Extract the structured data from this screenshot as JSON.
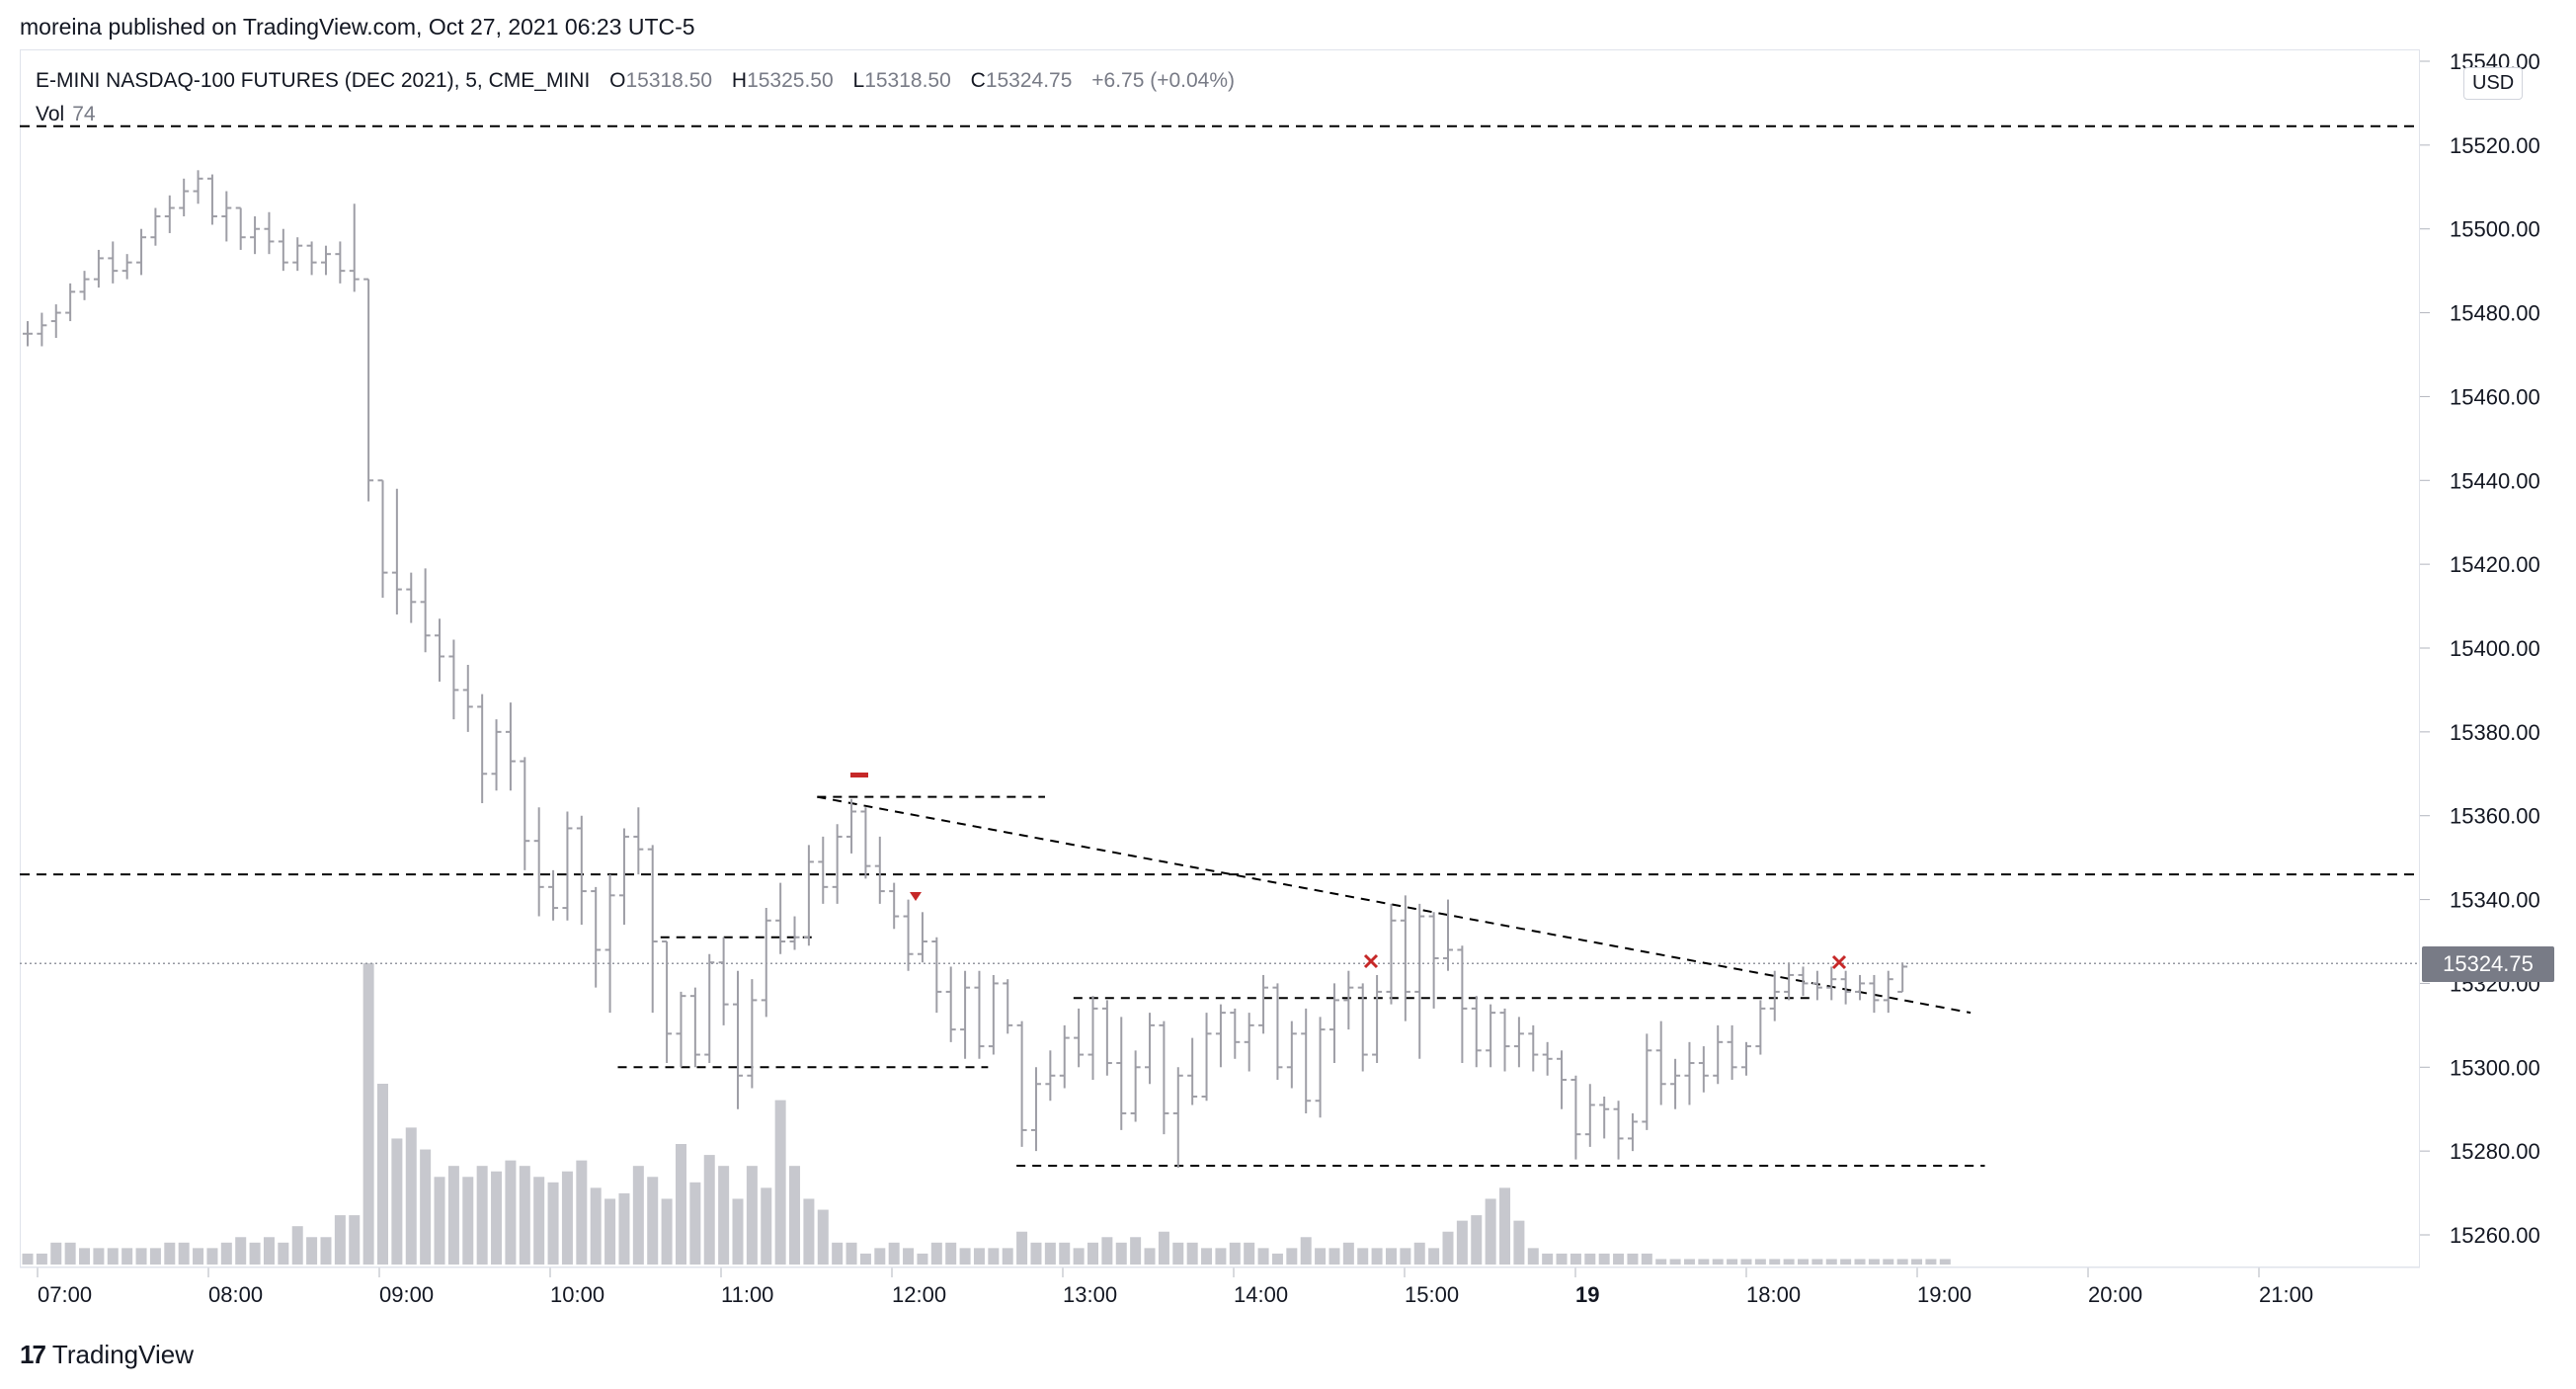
{
  "header": {
    "publish_line": "moreina published on TradingView.com, Oct 27, 2021 06:23 UTC-5"
  },
  "legend": {
    "symbol": "E-MINI NASDAQ-100 FUTURES (DEC 2021), 5, CME_MINI",
    "open_label": "O",
    "open_value": "15318.50",
    "high_label": "H",
    "high_value": "15325.50",
    "low_label": "L",
    "low_value": "15318.50",
    "close_label": "C",
    "close_value": "15324.75",
    "change": "+6.75 (+0.04%)",
    "vol_label": "Vol",
    "vol_value": "74"
  },
  "axis": {
    "currency": "USD",
    "last_price": "15324.75",
    "price_ticks": [
      "15540.00",
      "15520.00",
      "15500.00",
      "15480.00",
      "15460.00",
      "15440.00",
      "15420.00",
      "15400.00",
      "15380.00",
      "15360.00",
      "15340.00",
      "15320.00",
      "15300.00",
      "15280.00",
      "15260.00"
    ],
    "time_ticks": [
      "07:00",
      "08:00",
      "09:00",
      "10:00",
      "11:00",
      "12:00",
      "13:00",
      "14:00",
      "15:00",
      "19",
      "18:00",
      "19:00",
      "20:00",
      "21:00"
    ]
  },
  "footer": {
    "brand": "TradingView"
  },
  "colors": {
    "bar": "#9e9ea6",
    "volume": "#c7c8ce",
    "line": "#000000",
    "marker": "#c62828",
    "price_line": "#9598a1"
  },
  "chart_data": {
    "type": "bar",
    "title": "E-MINI NASDAQ-100 FUTURES (DEC 2021), 5, CME_MINI",
    "ylim": [
      15255,
      15545
    ],
    "ohlc": [
      [
        15475,
        15478,
        15472,
        15475
      ],
      [
        15475,
        15480,
        15472,
        15477
      ],
      [
        15478,
        15482,
        15474,
        15480
      ],
      [
        15480,
        15487,
        15478,
        15485
      ],
      [
        15485,
        15490,
        15483,
        15488
      ],
      [
        15488,
        15495,
        15486,
        15493
      ],
      [
        15493,
        15497,
        15487,
        15490
      ],
      [
        15490,
        15494,
        15488,
        15492
      ],
      [
        15492,
        15500,
        15489,
        15498
      ],
      [
        15498,
        15505,
        15496,
        15503
      ],
      [
        15503,
        15508,
        15499,
        15505
      ],
      [
        15505,
        15512,
        15503,
        15509
      ],
      [
        15509,
        15514,
        15506,
        15512
      ],
      [
        15512,
        15513,
        15501,
        15503
      ],
      [
        15503,
        15509,
        15497,
        15505
      ],
      [
        15505,
        15505,
        15495,
        15498
      ],
      [
        15498,
        15503,
        15494,
        15500
      ],
      [
        15500,
        15504,
        15494,
        15497
      ],
      [
        15497,
        15500,
        15490,
        15492
      ],
      [
        15492,
        15498,
        15490,
        15496
      ],
      [
        15496,
        15497,
        15489,
        15492
      ],
      [
        15492,
        15496,
        15489,
        15494
      ],
      [
        15494,
        15497,
        15487,
        15490
      ],
      [
        15490,
        15506,
        15485,
        15488
      ],
      [
        15488,
        15488,
        15435,
        15440
      ],
      [
        15440,
        15440,
        15412,
        15418
      ],
      [
        15418,
        15438,
        15408,
        15414
      ],
      [
        15414,
        15418,
        15406,
        15411
      ],
      [
        15411,
        15419,
        15399,
        15403
      ],
      [
        15403,
        15407,
        15392,
        15398
      ],
      [
        15398,
        15402,
        15383,
        15390
      ],
      [
        15390,
        15396,
        15380,
        15386
      ],
      [
        15386,
        15389,
        15363,
        15370
      ],
      [
        15370,
        15383,
        15366,
        15380
      ],
      [
        15380,
        15387,
        15366,
        15373
      ],
      [
        15373,
        15374,
        15347,
        15354
      ],
      [
        15354,
        15362,
        15336,
        15343
      ],
      [
        15343,
        15347,
        15335,
        15338
      ],
      [
        15338,
        15361,
        15335,
        15357
      ],
      [
        15357,
        15360,
        15334,
        15342
      ],
      [
        15342,
        15343,
        15319,
        15328
      ],
      [
        15328,
        15346,
        15313,
        15341
      ],
      [
        15341,
        15357,
        15334,
        15355
      ],
      [
        15355,
        15362,
        15346,
        15352
      ],
      [
        15352,
        15353,
        15313,
        15330
      ],
      [
        15330,
        15330,
        15301,
        15308
      ],
      [
        15308,
        15318,
        15300,
        15317
      ],
      [
        15317,
        15319,
        15300,
        15303
      ],
      [
        15303,
        15327,
        15301,
        15325
      ],
      [
        15325,
        15331,
        15310,
        15315
      ],
      [
        15315,
        15323,
        15290,
        15298
      ],
      [
        15298,
        15321,
        15295,
        15316
      ],
      [
        15316,
        15338,
        15312,
        15335
      ],
      [
        15335,
        15344,
        15327,
        15330
      ],
      [
        15330,
        15336,
        15328,
        15331
      ],
      [
        15331,
        15353,
        15329,
        15349
      ],
      [
        15349,
        15355,
        15339,
        15343
      ],
      [
        15343,
        15358,
        15339,
        15355
      ],
      [
        15355,
        15364,
        15351,
        15361
      ],
      [
        15361,
        15362,
        15345,
        15348
      ],
      [
        15348,
        15355,
        15339,
        15342
      ],
      [
        15342,
        15344,
        15333,
        15336
      ],
      [
        15336,
        15340,
        15323,
        15327
      ],
      [
        15327,
        15337,
        15325,
        15330
      ],
      [
        15330,
        15331,
        15313,
        15318
      ],
      [
        15318,
        15324,
        15306,
        15309
      ],
      [
        15309,
        15323,
        15302,
        15319
      ],
      [
        15319,
        15323,
        15302,
        15305
      ],
      [
        15305,
        15322,
        15303,
        15320
      ],
      [
        15320,
        15321,
        15308,
        15310
      ],
      [
        15310,
        15311,
        15281,
        15285
      ],
      [
        15285,
        15300,
        15280,
        15296
      ],
      [
        15296,
        15304,
        15292,
        15298
      ],
      [
        15298,
        15310,
        15295,
        15307
      ],
      [
        15307,
        15314,
        15300,
        15303
      ],
      [
        15303,
        15317,
        15297,
        15314
      ],
      [
        15314,
        15316,
        15298,
        15301
      ],
      [
        15301,
        15312,
        15285,
        15289
      ],
      [
        15289,
        15304,
        15287,
        15300
      ],
      [
        15300,
        15313,
        15296,
        15310
      ],
      [
        15310,
        15311,
        15284,
        15289
      ],
      [
        15289,
        15300,
        15276,
        15298
      ],
      [
        15298,
        15307,
        15291,
        15293
      ],
      [
        15293,
        15313,
        15292,
        15308
      ],
      [
        15308,
        15315,
        15300,
        15313
      ],
      [
        15313,
        15314,
        15302,
        15306
      ],
      [
        15306,
        15313,
        15299,
        15310
      ],
      [
        15310,
        15322,
        15308,
        15319
      ],
      [
        15319,
        15320,
        15297,
        15300
      ],
      [
        15300,
        15311,
        15295,
        15308
      ],
      [
        15308,
        15314,
        15289,
        15292
      ],
      [
        15292,
        15312,
        15288,
        15309
      ],
      [
        15309,
        15320,
        15301,
        15316
      ],
      [
        15316,
        15323,
        15309,
        15319
      ],
      [
        15319,
        15320,
        15299,
        15303
      ],
      [
        15303,
        15322,
        15301,
        15318
      ],
      [
        15318,
        15339,
        15315,
        15335
      ],
      [
        15335,
        15341,
        15311,
        15318
      ],
      [
        15318,
        15339,
        15302,
        15336
      ],
      [
        15336,
        15337,
        15314,
        15326
      ],
      [
        15326,
        15340,
        15323,
        15328
      ],
      [
        15328,
        15329,
        15301,
        15314
      ],
      [
        15314,
        15317,
        15300,
        15304
      ],
      [
        15304,
        15315,
        15300,
        15313
      ],
      [
        15313,
        15314,
        15299,
        15305
      ],
      [
        15305,
        15312,
        15300,
        15308
      ],
      [
        15308,
        15310,
        15299,
        15303
      ],
      [
        15303,
        15306,
        15298,
        15302
      ],
      [
        15302,
        15304,
        15290,
        15297
      ],
      [
        15297,
        15298,
        15278,
        15284
      ],
      [
        15284,
        15296,
        15281,
        15291
      ],
      [
        15291,
        15293,
        15283,
        15290
      ],
      [
        15290,
        15292,
        15278,
        15283
      ],
      [
        15283,
        15289,
        15280,
        15287
      ],
      [
        15287,
        15308,
        15285,
        15304
      ],
      [
        15304,
        15311,
        15291,
        15296
      ],
      [
        15296,
        15302,
        15290,
        15298
      ],
      [
        15298,
        15306,
        15291,
        15301
      ],
      [
        15301,
        15305,
        15294,
        15298
      ],
      [
        15298,
        15310,
        15296,
        15306
      ],
      [
        15306,
        15310,
        15297,
        15300
      ],
      [
        15300,
        15306,
        15298,
        15305
      ],
      [
        15305,
        15316,
        15303,
        15314
      ],
      [
        15314,
        15323,
        15311,
        15318
      ],
      [
        15318,
        15325,
        15316,
        15322
      ],
      [
        15322,
        15324,
        15317,
        15320
      ],
      [
        15320,
        15323,
        15316,
        15319
      ],
      [
        15319,
        15324,
        15316,
        15321
      ],
      [
        15321,
        15323,
        15315,
        15318
      ],
      [
        15318,
        15322,
        15316,
        15320
      ],
      [
        15320,
        15322,
        15313,
        15316
      ],
      [
        15316,
        15323,
        15313,
        15321
      ],
      [
        15318,
        15325,
        15318,
        15324
      ]
    ],
    "volume": [
      2,
      2,
      4,
      4,
      3,
      3,
      3,
      3,
      3,
      3,
      4,
      4,
      3,
      3,
      4,
      5,
      4,
      5,
      4,
      7,
      5,
      5,
      9,
      9,
      55,
      33,
      23,
      25,
      21,
      16,
      18,
      16,
      18,
      17,
      19,
      18,
      16,
      15,
      17,
      19,
      14,
      12,
      13,
      18,
      16,
      12,
      22,
      15,
      20,
      18,
      12,
      18,
      14,
      30,
      18,
      12,
      10,
      4,
      4,
      2,
      3,
      4,
      3,
      2,
      4,
      4,
      3,
      3,
      3,
      3,
      6,
      4,
      4,
      4,
      3,
      4,
      5,
      4,
      5,
      3,
      6,
      4,
      4,
      3,
      3,
      4,
      4,
      3,
      2,
      3,
      5,
      3,
      3,
      4,
      3,
      3,
      3,
      3,
      4,
      3,
      6,
      8,
      9,
      12,
      14,
      8,
      3,
      2,
      2,
      2,
      2,
      2,
      2,
      2,
      2,
      1,
      1,
      1,
      1,
      1,
      1,
      1,
      1,
      1,
      1,
      1,
      1,
      1,
      1,
      1,
      1,
      1,
      1,
      1,
      1,
      1
    ],
    "horizontal_levels": [
      15524.5,
      15346
    ],
    "trendline": {
      "from": [
        15364.5,
        "11:40"
      ],
      "to": [
        15313,
        "19:25"
      ]
    },
    "zones": [
      {
        "price": 15364.5,
        "from": "11:40",
        "to": "13:00"
      },
      {
        "price": 15331,
        "from": "10:45",
        "to": "11:40"
      },
      {
        "price": 15300,
        "from": "10:30",
        "to": "12:40"
      },
      {
        "price": 15316.5,
        "from": "13:10",
        "to": "18:30"
      },
      {
        "price": 15276.5,
        "from": "12:50",
        "to": "19:30"
      }
    ]
  }
}
